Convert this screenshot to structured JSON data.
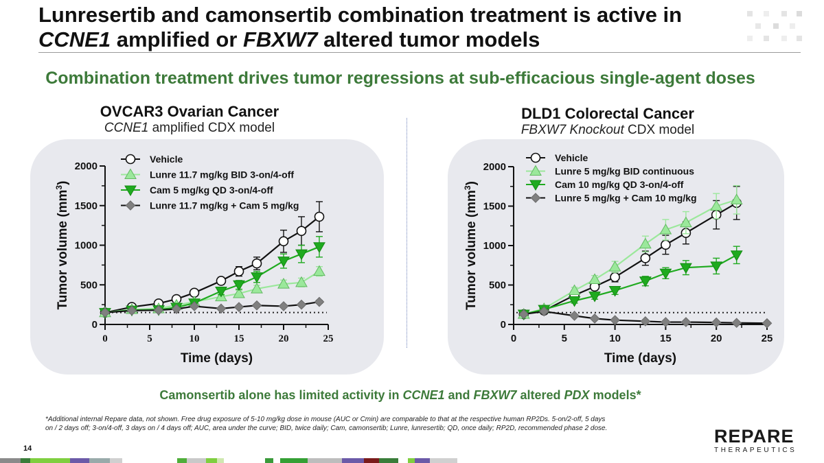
{
  "slide": {
    "title_line1": "Lunresertib and camonsertib combination treatment is active in",
    "title_line2_gene1": "CCNE1",
    "title_line2_mid": " amplified or ",
    "title_line2_gene2": "FBXW7",
    "title_line2_end": " altered tumor models",
    "subtitle": "Combination treatment drives tumor regressions at sub-efficacious single-agent doses",
    "footline_pre": "Camonsertib alone has limited activity in ",
    "footline_gene1": "CCNE1",
    "footline_mid": " and ",
    "footline_gene2": "FBXW7",
    "footline_mid2": " altered ",
    "footline_pdx": "PDX",
    "footline_end": " models*",
    "footnote": "*Additional internal Repare data, not shown. Free drug exposure of 5-10 mg/kg dose in mouse (AUC or Cmin) are comparable to that at the respective human RP2Ds. 5-on/2-off, 5 days on / 2 days off; 3-on/4-off, 3 days on / 4 days off; AUC, area under the curve; BID, twice daily; Cam, camonsertib; Lunre, lunresertib; QD, once daily; RP2D, recommended phase 2 dose.",
    "page_number": "14",
    "logo_main": "REPARE",
    "logo_sub": "THERAPEUTICS"
  },
  "colors": {
    "accent_green": "#3d7a3a",
    "vehicle": "#111111",
    "lunre": "#9be89b",
    "cam": "#1faa1f",
    "combo": "#808080"
  },
  "chart_data": [
    {
      "type": "line",
      "title": "OVCAR3 Ovarian Cancer",
      "subtitle_gene": "CCNE1",
      "subtitle_rest": " amplified CDX model",
      "xlabel": "Time (days)",
      "ylabel": "Tumor volume (mm",
      "ylabel_sup": "3",
      "ylabel_end": ")",
      "xlim": [
        0,
        25
      ],
      "ylim": [
        0,
        2000
      ],
      "xticks": [
        0,
        5,
        10,
        15,
        20,
        25
      ],
      "yticks": [
        0,
        500,
        1000,
        1500,
        2000
      ],
      "xtick_labels": [
        "0",
        "5",
        "10",
        "15",
        "20",
        "25"
      ],
      "ytick_labels": [
        "0",
        "500",
        "1000",
        "1500",
        "2000"
      ],
      "baseline": 150,
      "legend_position": "top-left",
      "series": [
        {
          "name": "Vehicle",
          "marker": "circle",
          "color": "#111111",
          "x": [
            0,
            3,
            6,
            8,
            10,
            13,
            15,
            17,
            20,
            22,
            24
          ],
          "y": [
            150,
            220,
            265,
            320,
            400,
            550,
            670,
            770,
            1050,
            1180,
            1360
          ],
          "err": [
            15,
            20,
            25,
            30,
            35,
            45,
            60,
            80,
            140,
            180,
            190
          ]
        },
        {
          "name": "Lunre 11.7 mg/kg BID 3-on/4-off",
          "marker": "triangle-up",
          "color": "#9be89b",
          "x": [
            0,
            3,
            6,
            8,
            10,
            13,
            15,
            17,
            20,
            22,
            24
          ],
          "y": [
            150,
            190,
            200,
            245,
            285,
            350,
            390,
            450,
            510,
            530,
            670
          ],
          "err": [
            15,
            15,
            20,
            25,
            25,
            35,
            40,
            45,
            50,
            55,
            60
          ]
        },
        {
          "name": "Cam 5 mg/kg QD 3-on/4-off",
          "marker": "triangle-down",
          "color": "#1faa1f",
          "x": [
            0,
            3,
            6,
            8,
            10,
            13,
            15,
            17,
            20,
            22,
            24
          ],
          "y": [
            150,
            180,
            185,
            215,
            270,
            420,
            500,
            600,
            800,
            890,
            980
          ],
          "err": [
            15,
            15,
            20,
            25,
            30,
            45,
            55,
            70,
            90,
            110,
            130
          ]
        },
        {
          "name": "Lunre 11.7 mg/kg + Cam 5 mg/kg",
          "marker": "diamond",
          "color": "#808080",
          "x": [
            0,
            3,
            6,
            8,
            10,
            13,
            15,
            17,
            20,
            22,
            24
          ],
          "y": [
            150,
            175,
            180,
            195,
            230,
            200,
            220,
            240,
            230,
            250,
            285
          ],
          "err": [
            10,
            10,
            12,
            15,
            15,
            15,
            15,
            15,
            15,
            15,
            18
          ]
        }
      ]
    },
    {
      "type": "line",
      "title": "DLD1 Colorectal Cancer",
      "subtitle_gene": "FBXW7 Knockout",
      "subtitle_rest": " CDX model",
      "xlabel": "Time (days)",
      "ylabel": "Tumor volume (mm",
      "ylabel_sup": "3",
      "ylabel_end": ")",
      "xlim": [
        0,
        25
      ],
      "ylim": [
        0,
        2000
      ],
      "xticks": [
        0,
        5,
        10,
        15,
        20,
        25
      ],
      "yticks": [
        0,
        500,
        1000,
        1500,
        2000
      ],
      "xtick_labels": [
        "0",
        "5",
        "10",
        "15",
        "20",
        "25"
      ],
      "ytick_labels": [
        "0",
        "500",
        "1000",
        "1500",
        "2000"
      ],
      "baseline": 150,
      "legend_position": "top-left",
      "series": [
        {
          "name": "Vehicle",
          "marker": "circle",
          "color": "#111111",
          "x": [
            1,
            3,
            6,
            8,
            10,
            13,
            15,
            17,
            20,
            22
          ],
          "y": [
            130,
            175,
            370,
            480,
            600,
            840,
            1010,
            1160,
            1390,
            1540
          ],
          "err": [
            15,
            20,
            35,
            45,
            60,
            90,
            120,
            140,
            180,
            210
          ]
        },
        {
          "name": "Lunre 5 mg/kg BID continuous",
          "marker": "triangle-up",
          "color": "#9be89b",
          "x": [
            1,
            3,
            6,
            8,
            10,
            13,
            15,
            17,
            20,
            22
          ],
          "y": [
            130,
            200,
            430,
            570,
            730,
            1020,
            1200,
            1290,
            1500,
            1580
          ],
          "err": [
            15,
            20,
            40,
            50,
            70,
            100,
            130,
            140,
            160,
            180
          ]
        },
        {
          "name": "Cam 10 mg/kg QD 3-on/4-off",
          "marker": "triangle-down",
          "color": "#1faa1f",
          "x": [
            1,
            3,
            6,
            8,
            10,
            13,
            15,
            17,
            20,
            22
          ],
          "y": [
            130,
            190,
            300,
            360,
            430,
            550,
            650,
            720,
            740,
            880
          ],
          "err": [
            15,
            20,
            30,
            40,
            50,
            60,
            70,
            90,
            100,
            110
          ]
        },
        {
          "name": "Lunre 5 mg/kg + Cam 10 mg/kg",
          "marker": "diamond",
          "color": "#808080",
          "x": [
            1,
            3,
            6,
            8,
            10,
            13,
            15,
            17,
            20,
            22,
            25
          ],
          "y": [
            130,
            165,
            110,
            75,
            55,
            40,
            30,
            30,
            25,
            20,
            15
          ],
          "err": [
            10,
            10,
            10,
            8,
            8,
            6,
            6,
            6,
            5,
            5,
            4
          ]
        }
      ]
    }
  ]
}
